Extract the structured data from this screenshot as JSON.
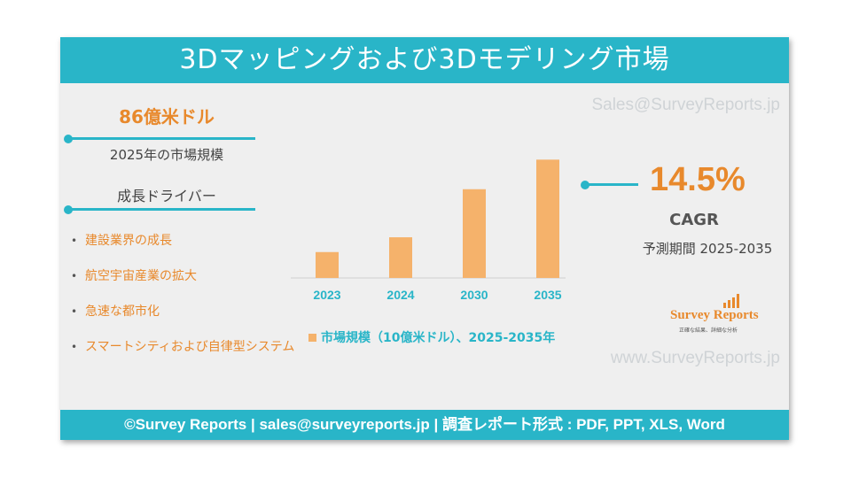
{
  "title": "3Dマッピングおよび3Dモデリング市場",
  "watermark_top": "Sales@SurveyReports.jp",
  "watermark_bottom": "www.SurveyReports.jp",
  "market_size": {
    "value": "86億米ドル",
    "caption": "2025年の市場規模"
  },
  "growth_drivers": {
    "heading": "成長ドライバー",
    "items": [
      "建設業界の成長",
      "航空宇宙産業の拡大",
      "急速な都市化",
      "スマートシティおよび自律型システム"
    ]
  },
  "cagr": {
    "value": "14.5%",
    "label": "CAGR",
    "period": "予測期間 2025-2035"
  },
  "logo": {
    "name": "Survey Reports",
    "tagline": "正確な結果、詳細な分析"
  },
  "footer": "©Survey Reports | sales@surveyreports.jp | 調査レポート形式 : PDF, PPT, XLS, Word",
  "colors": {
    "accent": "#29b5c8",
    "highlight": "#e8892c",
    "bar": "#f5b26b"
  },
  "chart_data": {
    "type": "bar",
    "categories": [
      "2023",
      "2024",
      "2030",
      "2035"
    ],
    "series": [
      {
        "name": "市場規模（10億米ドル）、2025-2035年",
        "values": [
          3.5,
          5.5,
          12,
          16
        ]
      }
    ],
    "ylim": [
      0,
      17
    ]
  }
}
